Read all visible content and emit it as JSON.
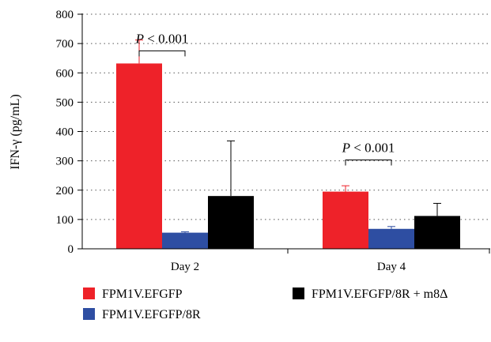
{
  "chart_data": {
    "type": "bar",
    "categories": [
      "Day 2",
      "Day 4"
    ],
    "series": [
      {
        "name": "FPM1V.EFGFP",
        "color": "#ee2229",
        "values": [
          632,
          195
        ],
        "errors": [
          80,
          20
        ]
      },
      {
        "name": "FPM1V.EFGFP/8R",
        "color": "#2e4ea2",
        "values": [
          55,
          68
        ],
        "errors": [
          3,
          8
        ]
      },
      {
        "name": "FPM1V.EFGFP/8R + m8Δ",
        "color": "#000000",
        "values": [
          180,
          112
        ],
        "errors": [
          188,
          43
        ]
      }
    ],
    "ylabel": "IFN-γ (pg/mL)",
    "ylim": [
      0,
      800
    ],
    "yticks": [
      0,
      100,
      200,
      300,
      400,
      500,
      600,
      700,
      800
    ],
    "grid": "dotted-horizontal",
    "legend_position": "bottom",
    "annotations": [
      {
        "text": "P < 0.001",
        "category": "Day 2",
        "between": [
          0,
          1
        ],
        "bracket_y": 675
      },
      {
        "text": "P < 0.001",
        "category": "Day 4",
        "between": [
          0,
          1
        ],
        "bracket_y": 303
      }
    ]
  }
}
